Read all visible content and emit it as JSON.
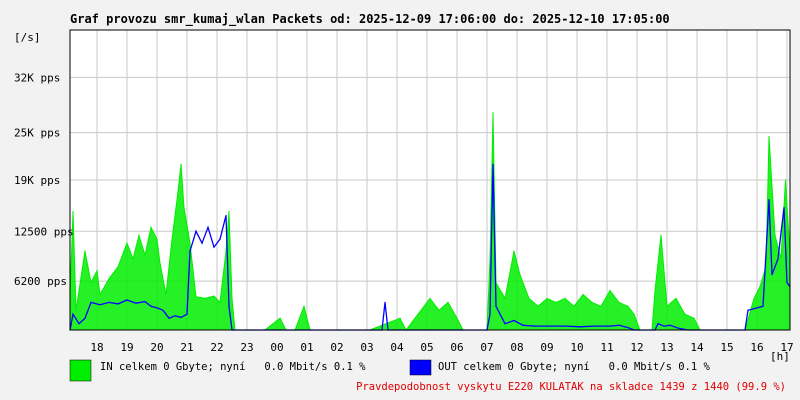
{
  "chart_data": {
    "type": "line",
    "title": "Graf provozu smr_kumaj_wlan Packets od: 2025-12-09 17:06:00 do: 2025-12-10 17:05:00",
    "ylabel": "[/s]",
    "xlabel": "[h]",
    "ylim": [
      0,
      38000
    ],
    "y_ticks": [
      {
        "value": 6200,
        "label": "6200 pps"
      },
      {
        "value": 12500,
        "label": "12500 pps"
      },
      {
        "value": 19000,
        "label": "19K pps"
      },
      {
        "value": 25000,
        "label": "25K pps"
      },
      {
        "value": 32000,
        "label": "32K pps"
      }
    ],
    "x_ticks": [
      {
        "value": 0.9,
        "label": "18"
      },
      {
        "value": 1.9,
        "label": "19"
      },
      {
        "value": 2.9,
        "label": "20"
      },
      {
        "value": 3.9,
        "label": "21"
      },
      {
        "value": 4.9,
        "label": "22"
      },
      {
        "value": 5.9,
        "label": "23"
      },
      {
        "value": 6.9,
        "label": "00"
      },
      {
        "value": 7.9,
        "label": "01"
      },
      {
        "value": 8.9,
        "label": "02"
      },
      {
        "value": 9.9,
        "label": "03"
      },
      {
        "value": 10.9,
        "label": "04"
      },
      {
        "value": 11.9,
        "label": "05"
      },
      {
        "value": 12.9,
        "label": "06"
      },
      {
        "value": 13.9,
        "label": "07"
      },
      {
        "value": 14.9,
        "label": "08"
      },
      {
        "value": 15.9,
        "label": "09"
      },
      {
        "value": 16.9,
        "label": "10"
      },
      {
        "value": 17.9,
        "label": "11"
      },
      {
        "value": 18.9,
        "label": "12"
      },
      {
        "value": 19.9,
        "label": "13"
      },
      {
        "value": 20.9,
        "label": "14"
      },
      {
        "value": 21.9,
        "label": "15"
      },
      {
        "value": 22.9,
        "label": "16"
      },
      {
        "value": 23.9,
        "label": "17"
      }
    ],
    "xlim": [
      0,
      24
    ],
    "grid": true,
    "series": [
      {
        "name": "IN",
        "color": "#00ee00",
        "style": "filled",
        "points": [
          [
            0.0,
            4000
          ],
          [
            0.1,
            15000
          ],
          [
            0.2,
            2500
          ],
          [
            0.3,
            5000
          ],
          [
            0.5,
            10000
          ],
          [
            0.7,
            6000
          ],
          [
            0.9,
            7500
          ],
          [
            1.0,
            4500
          ],
          [
            1.3,
            6500
          ],
          [
            1.6,
            8000
          ],
          [
            1.9,
            11000
          ],
          [
            2.1,
            9000
          ],
          [
            2.3,
            12000
          ],
          [
            2.5,
            9500
          ],
          [
            2.7,
            13000
          ],
          [
            2.9,
            11500
          ],
          [
            3.0,
            8500
          ],
          [
            3.2,
            4500
          ],
          [
            3.4,
            11500
          ],
          [
            3.6,
            17500
          ],
          [
            3.7,
            21000
          ],
          [
            3.8,
            15500
          ],
          [
            4.0,
            11000
          ],
          [
            4.2,
            4200
          ],
          [
            4.5,
            4000
          ],
          [
            4.8,
            4300
          ],
          [
            5.0,
            3500
          ],
          [
            5.2,
            10000
          ],
          [
            5.3,
            15000
          ],
          [
            5.4,
            4000
          ],
          [
            5.5,
            0
          ],
          [
            6.0,
            0
          ],
          [
            6.5,
            0
          ],
          [
            7.0,
            1500
          ],
          [
            7.2,
            0
          ],
          [
            7.5,
            0
          ],
          [
            7.8,
            3000
          ],
          [
            8.0,
            0
          ],
          [
            9.0,
            0
          ],
          [
            10.0,
            0
          ],
          [
            11.0,
            1500
          ],
          [
            11.2,
            0
          ],
          [
            11.6,
            2000
          ],
          [
            12.0,
            4000
          ],
          [
            12.3,
            2500
          ],
          [
            12.6,
            3500
          ],
          [
            12.9,
            1500
          ],
          [
            13.1,
            0
          ],
          [
            13.9,
            0
          ],
          [
            14.0,
            9000
          ],
          [
            14.1,
            27500
          ],
          [
            14.2,
            6000
          ],
          [
            14.5,
            4000
          ],
          [
            14.8,
            10000
          ],
          [
            15.0,
            7000
          ],
          [
            15.3,
            4000
          ],
          [
            15.6,
            3000
          ],
          [
            15.9,
            4000
          ],
          [
            16.2,
            3500
          ],
          [
            16.5,
            4000
          ],
          [
            16.8,
            3000
          ],
          [
            17.1,
            4500
          ],
          [
            17.4,
            3500
          ],
          [
            17.7,
            3000
          ],
          [
            18.0,
            5000
          ],
          [
            18.3,
            3500
          ],
          [
            18.6,
            3000
          ],
          [
            18.8,
            2000
          ],
          [
            19.0,
            0
          ],
          [
            19.4,
            0
          ],
          [
            19.5,
            5000
          ],
          [
            19.7,
            12000
          ],
          [
            19.9,
            3000
          ],
          [
            20.2,
            4000
          ],
          [
            20.5,
            2000
          ],
          [
            20.8,
            1500
          ],
          [
            21.0,
            0
          ],
          [
            22.0,
            0
          ],
          [
            22.5,
            0
          ],
          [
            22.8,
            4000
          ],
          [
            23.0,
            5500
          ],
          [
            23.2,
            8000
          ],
          [
            23.3,
            24500
          ],
          [
            23.5,
            12000
          ],
          [
            23.7,
            9000
          ],
          [
            23.85,
            19000
          ],
          [
            24.0,
            9500
          ]
        ]
      },
      {
        "name": "OUT",
        "color": "#0000ff",
        "style": "line",
        "points": [
          [
            0.0,
            0
          ],
          [
            0.1,
            2000
          ],
          [
            0.3,
            800
          ],
          [
            0.5,
            1500
          ],
          [
            0.7,
            3500
          ],
          [
            1.0,
            3200
          ],
          [
            1.3,
            3500
          ],
          [
            1.6,
            3300
          ],
          [
            1.9,
            3800
          ],
          [
            2.2,
            3400
          ],
          [
            2.5,
            3600
          ],
          [
            2.7,
            3000
          ],
          [
            2.9,
            2800
          ],
          [
            3.1,
            2500
          ],
          [
            3.3,
            1500
          ],
          [
            3.5,
            1800
          ],
          [
            3.7,
            1600
          ],
          [
            3.9,
            2000
          ],
          [
            4.0,
            10000
          ],
          [
            4.2,
            12500
          ],
          [
            4.4,
            11000
          ],
          [
            4.6,
            13000
          ],
          [
            4.8,
            10500
          ],
          [
            5.0,
            11500
          ],
          [
            5.2,
            14500
          ],
          [
            5.3,
            3000
          ],
          [
            5.4,
            0
          ],
          [
            6.0,
            0
          ],
          [
            7.0,
            0
          ],
          [
            8.0,
            0
          ],
          [
            9.0,
            0
          ],
          [
            10.0,
            0
          ],
          [
            10.4,
            0
          ],
          [
            10.5,
            3500
          ],
          [
            10.6,
            0
          ],
          [
            11.0,
            0
          ],
          [
            12.0,
            0
          ],
          [
            13.0,
            0
          ],
          [
            13.9,
            0
          ],
          [
            14.0,
            2000
          ],
          [
            14.1,
            21000
          ],
          [
            14.2,
            3000
          ],
          [
            14.5,
            800
          ],
          [
            14.8,
            1200
          ],
          [
            15.1,
            600
          ],
          [
            15.5,
            500
          ],
          [
            16.0,
            500
          ],
          [
            16.5,
            500
          ],
          [
            17.0,
            400
          ],
          [
            17.5,
            500
          ],
          [
            18.0,
            500
          ],
          [
            18.3,
            600
          ],
          [
            18.6,
            300
          ],
          [
            18.8,
            0
          ],
          [
            19.5,
            0
          ],
          [
            19.6,
            800
          ],
          [
            19.8,
            500
          ],
          [
            20.0,
            600
          ],
          [
            20.3,
            200
          ],
          [
            20.6,
            0
          ],
          [
            22.0,
            0
          ],
          [
            22.5,
            0
          ],
          [
            22.6,
            2500
          ],
          [
            22.9,
            2800
          ],
          [
            23.1,
            3000
          ],
          [
            23.3,
            16500
          ],
          [
            23.4,
            7000
          ],
          [
            23.6,
            9000
          ],
          [
            23.8,
            15500
          ],
          [
            23.9,
            6000
          ],
          [
            24.0,
            5500
          ]
        ]
      }
    ],
    "legend": [
      {
        "color": "#00ee00",
        "text": "IN celkem 0 Gbyte; nyní   0.0 Mbit/s 0.1 %"
      },
      {
        "color": "#0000ff",
        "text": "OUT celkem 0 Gbyte; nyní   0.0 Mbit/s 0.1 %"
      }
    ],
    "warning": "Pravdepodobnost vyskytu E220 KULATAK na skladce 1439 z 1440 (99.9 %)"
  }
}
